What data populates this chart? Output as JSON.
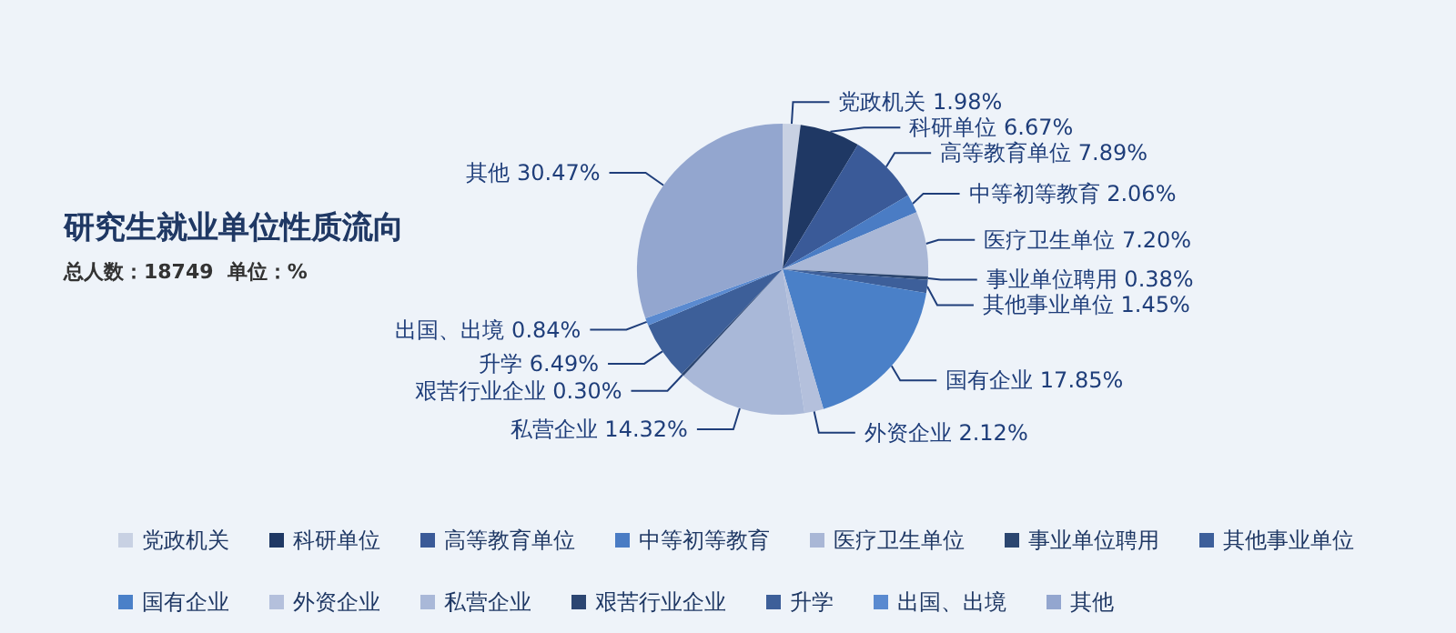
{
  "chart_data": {
    "type": "pie",
    "title": "研究生就业单位性质流向",
    "subtitle": "总人数：18749  单位：%",
    "categories": [
      "党政机关",
      "科研单位",
      "高等教育单位",
      "中等初等教育",
      "医疗卫生单位",
      "事业单位聘用",
      "其他事业单位",
      "国有企业",
      "外资企业",
      "私营企业",
      "艰苦行业企业",
      "升学",
      "出国、出境",
      "其他"
    ],
    "values": [
      1.98,
      6.67,
      7.89,
      2.06,
      7.2,
      0.38,
      1.45,
      17.85,
      2.12,
      14.32,
      0.3,
      6.49,
      0.84,
      30.47
    ],
    "value_labels": [
      "1.98%",
      "6.67%",
      "7.89%",
      "2.06%",
      "7.20%",
      "0.38%",
      "1.45%",
      "17.85%",
      "2.12%",
      "14.32%",
      "0.30%",
      "6.49%",
      "0.84%",
      "30.47%"
    ],
    "colors": [
      "#c8d1e3",
      "#1f3864",
      "#3a5a98",
      "#4a7cc4",
      "#a9b7d6",
      "#2b4670",
      "#3d5f9a",
      "#4a80c8",
      "#b4c0dc",
      "#a9b8d8",
      "#2c4672",
      "#3d5f99",
      "#5a8ad0",
      "#93a6cf"
    ],
    "legend": "bottom"
  }
}
